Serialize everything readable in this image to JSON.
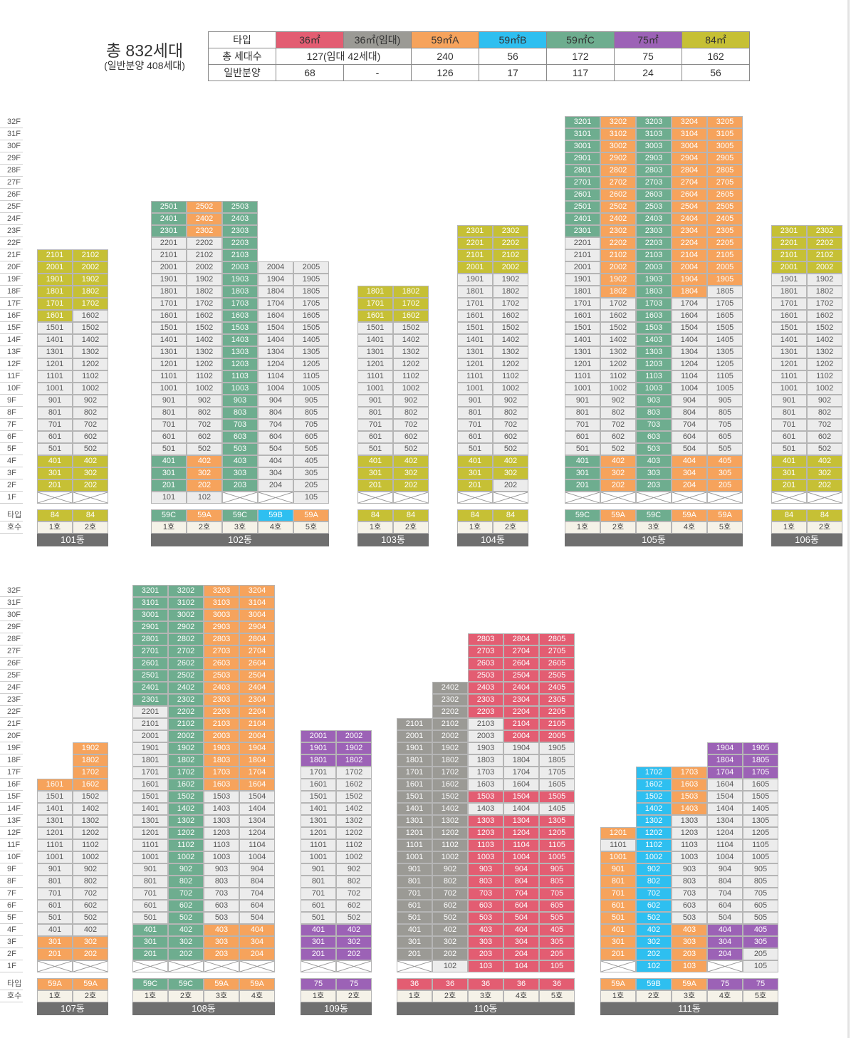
{
  "summary": {
    "title": "총 832세대",
    "subtitle": "(일반분양 408세대)",
    "header_label": "타입",
    "row1_label": "총 세대수",
    "row2_label": "일반분양",
    "types": [
      {
        "name": "36㎡",
        "color": "#e35d72",
        "total": "127(임대 42세대)",
        "sale": "68"
      },
      {
        "name": "36㎡(임대)",
        "color": "#9b9a95",
        "total": "",
        "sale": "-"
      },
      {
        "name": "59㎡A",
        "color": "#f6a35c",
        "total": "240",
        "sale": "126"
      },
      {
        "name": "59㎡B",
        "color": "#2ebff0",
        "total": "56",
        "sale": "17"
      },
      {
        "name": "59㎡C",
        "color": "#6ead8f",
        "total": "172",
        "sale": "117"
      },
      {
        "name": "75㎡",
        "color": "#9c62b6",
        "total": "75",
        "sale": "24"
      },
      {
        "name": "84㎡",
        "color": "#c6c035",
        "total": "162",
        "sale": "56"
      }
    ]
  },
  "type_colors": {
    "84": "#c6c035",
    "59A": "#f6a35c",
    "59B": "#2ebff0",
    "59C": "#6ead8f",
    "75": "#9c62b6",
    "36": "#e35d72",
    "36R": "#9b9a95",
    "G": "#ececec",
    "E": "#ffffff"
  },
  "row_labels": {
    "type": "타입",
    "unit": "호수"
  },
  "floor_labels": [
    "32F",
    "31F",
    "30F",
    "29F",
    "28F",
    "27F",
    "26F",
    "25F",
    "24F",
    "23F",
    "22F",
    "21F",
    "20F",
    "19F",
    "18F",
    "17F",
    "16F",
    "15F",
    "14F",
    "13F",
    "12F",
    "11F",
    "10F",
    "9F",
    "8F",
    "7F",
    "6F",
    "5F",
    "4F",
    "3F",
    "2F",
    "1F"
  ],
  "blocks": [
    {
      "buildings": [
        {
          "name": "101동",
          "lines": [
            "1호",
            "2호"
          ],
          "types": [
            "84",
            "84"
          ],
          "height": 21,
          "paint": {
            "0": [
              [
                16,
                21,
                "84"
              ],
              [
                1,
                1,
                "E"
              ],
              [
                2,
                4,
                "84"
              ]
            ],
            "1": [
              [
                17,
                21,
                "84"
              ],
              [
                1,
                1,
                "E"
              ],
              [
                2,
                4,
                "84"
              ]
            ]
          }
        },
        {
          "name": "102동",
          "lines": [
            "1호",
            "2호",
            "3호",
            "4호",
            "5호"
          ],
          "types": [
            "59C",
            "59A",
            "59C",
            "59B",
            "59A"
          ],
          "height": 25,
          "heights": [
            25,
            25,
            25,
            20,
            20
          ],
          "paint": {
            "0": [
              [
                23,
                25,
                "59C"
              ],
              [
                2,
                4,
                "59C"
              ]
            ],
            "1": [
              [
                23,
                25,
                "59A"
              ],
              [
                2,
                4,
                "59A"
              ]
            ],
            "2": [
              [
                2,
                25,
                "59C"
              ],
              [
                1,
                2,
                "E"
              ]
            ],
            "3": [
              [
                1,
                1,
                "E"
              ]
            ],
            "4": []
          }
        },
        {
          "name": "103동",
          "lines": [
            "1호",
            "2호"
          ],
          "types": [
            "84",
            "84"
          ],
          "height": 18,
          "paint": {
            "0": [
              [
                16,
                18,
                "84"
              ],
              [
                2,
                4,
                "84"
              ],
              [
                1,
                1,
                "E"
              ]
            ],
            "1": [
              [
                16,
                18,
                "84"
              ],
              [
                2,
                4,
                "84"
              ],
              [
                1,
                1,
                "E"
              ]
            ]
          }
        },
        {
          "name": "104동",
          "lines": [
            "1호",
            "2호"
          ],
          "types": [
            "84",
            "84"
          ],
          "height": 23,
          "paint": {
            "0": [
              [
                20,
                23,
                "84"
              ],
              [
                2,
                4,
                "84"
              ],
              [
                1,
                1,
                "E"
              ]
            ],
            "1": [
              [
                20,
                23,
                "84"
              ],
              [
                3,
                4,
                "84"
              ],
              [
                1,
                1,
                "E"
              ]
            ]
          }
        },
        {
          "name": "105동",
          "lines": [
            "1호",
            "2호",
            "3호",
            "4호",
            "5호"
          ],
          "types": [
            "59C",
            "59A",
            "59C",
            "59A",
            "59A"
          ],
          "height": 32,
          "paint": {
            "0": [
              [
                23,
                32,
                "59C"
              ],
              [
                2,
                4,
                "59C"
              ],
              [
                1,
                1,
                "E"
              ]
            ],
            "1": [
              [
                18,
                32,
                "59A"
              ],
              [
                2,
                4,
                "59A"
              ],
              [
                1,
                1,
                "E"
              ]
            ],
            "2": [
              [
                2,
                32,
                "59C"
              ],
              [
                1,
                1,
                "E"
              ]
            ],
            "3": [
              [
                18,
                32,
                "59A"
              ],
              [
                2,
                4,
                "59A"
              ],
              [
                1,
                1,
                "E"
              ]
            ],
            "4": [
              [
                19,
                32,
                "59A"
              ],
              [
                2,
                4,
                "59A"
              ],
              [
                1,
                1,
                "E"
              ]
            ]
          }
        },
        {
          "name": "106동",
          "lines": [
            "1호",
            "2호"
          ],
          "types": [
            "84",
            "84"
          ],
          "height": 23,
          "paint": {
            "0": [
              [
                20,
                23,
                "84"
              ],
              [
                2,
                4,
                "84"
              ],
              [
                1,
                1,
                "E"
              ]
            ],
            "1": [
              [
                20,
                23,
                "84"
              ],
              [
                2,
                4,
                "84"
              ],
              [
                1,
                1,
                "E"
              ]
            ]
          }
        }
      ]
    },
    {
      "buildings": [
        {
          "name": "107동",
          "lines": [
            "1호",
            "2호"
          ],
          "types": [
            "59A",
            "59A"
          ],
          "height": 19,
          "heights": [
            16,
            19
          ],
          "paint": {
            "0": [
              [
                16,
                16,
                "59A"
              ],
              [
                2,
                3,
                "59A"
              ],
              [
                1,
                1,
                "E"
              ]
            ],
            "1": [
              [
                16,
                19,
                "59A"
              ],
              [
                2,
                3,
                "59A"
              ],
              [
                1,
                1,
                "E"
              ]
            ]
          }
        },
        {
          "name": "108동",
          "lines": [
            "1호",
            "2호",
            "3호",
            "4호"
          ],
          "types": [
            "59C",
            "59C",
            "59A",
            "59A"
          ],
          "height": 32,
          "paint": {
            "0": [
              [
                23,
                32,
                "59C"
              ],
              [
                2,
                4,
                "59C"
              ],
              [
                1,
                1,
                "E"
              ]
            ],
            "1": [
              [
                2,
                32,
                "59C"
              ],
              [
                1,
                1,
                "E"
              ]
            ],
            "2": [
              [
                16,
                32,
                "59A"
              ],
              [
                2,
                4,
                "59A"
              ],
              [
                1,
                1,
                "E"
              ]
            ],
            "3": [
              [
                16,
                32,
                "59A"
              ],
              [
                2,
                4,
                "59A"
              ],
              [
                1,
                1,
                "E"
              ]
            ]
          }
        },
        {
          "name": "109동",
          "lines": [
            "1호",
            "2호"
          ],
          "types": [
            "75",
            "75"
          ],
          "height": 20,
          "paint": {
            "0": [
              [
                18,
                20,
                "75"
              ],
              [
                2,
                4,
                "75"
              ],
              [
                1,
                1,
                "E"
              ]
            ],
            "1": [
              [
                18,
                20,
                "75"
              ],
              [
                2,
                4,
                "75"
              ],
              [
                1,
                1,
                "E"
              ]
            ]
          }
        },
        {
          "name": "110동",
          "lines": [
            "1호",
            "2호",
            "3호",
            "4호",
            "5호"
          ],
          "types": [
            "36",
            "36",
            "36",
            "36",
            "36"
          ],
          "height": 28,
          "heights": [
            21,
            24,
            28,
            28,
            28
          ],
          "paint": {
            "0": [
              [
                2,
                21,
                "36R"
              ],
              [
                1,
                2,
                "E"
              ]
            ],
            "1": [
              [
                2,
                24,
                "36R"
              ]
            ],
            "2": [
              [
                22,
                28,
                "36"
              ],
              [
                15,
                15,
                "36"
              ],
              [
                1,
                13,
                "36"
              ]
            ],
            "3": [
              [
                20,
                28,
                "36"
              ],
              [
                15,
                15,
                "36"
              ],
              [
                1,
                13,
                "36"
              ]
            ],
            "4": [
              [
                20,
                28,
                "36"
              ],
              [
                15,
                15,
                "36"
              ],
              [
                1,
                13,
                "36"
              ]
            ]
          }
        },
        {
          "name": "111동",
          "lines": [
            "1호",
            "2호",
            "3호",
            "4호",
            "5호"
          ],
          "types": [
            "59A",
            "59B",
            "59A",
            "75",
            "75"
          ],
          "height": 19,
          "heights": [
            12,
            17,
            17,
            19,
            19
          ],
          "paint": {
            "0": [
              [
                12,
                12,
                "59A"
              ],
              [
                2,
                10,
                "59A"
              ],
              [
                1,
                1,
                "E"
              ]
            ],
            "1": [
              [
                1,
                17,
                "59B"
              ],
              [
                4,
                4,
                "59B"
              ]
            ],
            "2": [
              [
                14,
                17,
                "59A"
              ],
              [
                1,
                4,
                "59A"
              ],
              [
                4,
                4,
                "59A"
              ]
            ],
            "3": [
              [
                17,
                19,
                "75"
              ],
              [
                2,
                4,
                "75"
              ],
              [
                1,
                1,
                "E"
              ]
            ],
            "4": [
              [
                17,
                19,
                "75"
              ],
              [
                3,
                4,
                "75"
              ]
            ]
          }
        }
      ]
    }
  ]
}
